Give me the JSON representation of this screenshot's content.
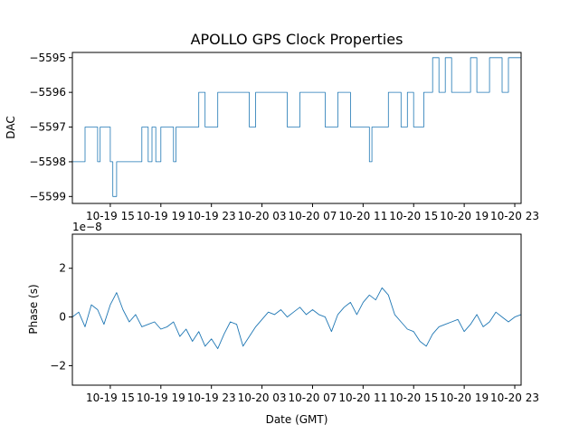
{
  "chart_data": [
    {
      "type": "line",
      "title": "APOLLO GPS Clock Properties",
      "xlabel": "",
      "ylabel": "DAC",
      "x_tick_labels": [
        "10-19 15",
        "10-19 19",
        "10-19 23",
        "10-20 03",
        "10-20 07",
        "10-20 11",
        "10-20 15",
        "10-20 19",
        "10-20 23"
      ],
      "x_tick_hours": [
        15,
        19,
        23,
        27,
        31,
        35,
        39,
        43,
        47
      ],
      "xlim_hours": [
        12.0,
        47.5
      ],
      "y_ticks": [
        -5599,
        -5598,
        -5597,
        -5596,
        -5595
      ],
      "y_tick_labels": [
        "−5599",
        "−5598",
        "−5597",
        "−5596",
        "−5595"
      ],
      "ylim": [
        -5599.2,
        -5594.85
      ],
      "color": "#1f77b4",
      "grid": false,
      "series": [
        {
          "x": [
            12.0,
            13.0,
            14.0,
            14.2,
            15.0,
            15.2,
            15.3,
            15.5,
            15.8,
            16.0,
            17.5,
            18.0,
            18.3,
            18.6,
            19.0,
            19.5,
            20.0,
            20.2,
            21.0,
            22.0,
            22.5,
            23.0,
            23.5,
            24.0,
            25.0,
            26.0,
            26.5,
            27.0,
            28.0,
            29.0,
            30.0,
            31.0,
            32.0,
            33.0,
            34.0,
            35.0,
            35.5,
            35.7,
            36.0,
            37.0,
            38.0,
            38.5,
            39.0,
            39.8,
            40.0,
            40.5,
            41.0,
            41.5,
            42.0,
            43.0,
            43.5,
            44.0,
            45.0,
            46.0,
            46.5,
            47.0,
            47.5
          ],
          "y": [
            -5598,
            -5597,
            -5598,
            -5597,
            -5598,
            -5599,
            -5599,
            -5598,
            -5598,
            -5598,
            -5597,
            -5598,
            -5597,
            -5598,
            -5597,
            -5597,
            -5598,
            -5597,
            -5597,
            -5596,
            -5597,
            -5597,
            -5596,
            -5596,
            -5596,
            -5597,
            -5596,
            -5596,
            -5596,
            -5597,
            -5596,
            -5596,
            -5597,
            -5596,
            -5597,
            -5597,
            -5598,
            -5597,
            -5597,
            -5596,
            -5597,
            -5596,
            -5597,
            -5596,
            -5596,
            -5595,
            -5596,
            -5595,
            -5596,
            -5596,
            -5595,
            -5596,
            -5595,
            -5596,
            -5595,
            -5595,
            -5596
          ]
        }
      ]
    },
    {
      "type": "line",
      "xlabel": "Date (GMT)",
      "ylabel": "Phase (s)",
      "offset_label": "1e−8",
      "x_tick_labels": [
        "10-19 15",
        "10-19 19",
        "10-19 23",
        "10-20 03",
        "10-20 07",
        "10-20 11",
        "10-20 15",
        "10-20 19",
        "10-20 23"
      ],
      "x_tick_hours": [
        15,
        19,
        23,
        27,
        31,
        35,
        39,
        43,
        47
      ],
      "xlim_hours": [
        12.0,
        47.5
      ],
      "y_ticks": [
        -2,
        0,
        2
      ],
      "y_tick_labels": [
        "−2",
        "0",
        "2"
      ],
      "ylim": [
        -2.8,
        3.4
      ],
      "color": "#1f77b4",
      "grid": false,
      "series": [
        {
          "x": [
            12.0,
            12.5,
            13.0,
            13.5,
            14.0,
            14.5,
            15.0,
            15.5,
            16.0,
            16.5,
            17.0,
            17.5,
            18.0,
            18.5,
            19.0,
            19.5,
            20.0,
            20.5,
            21.0,
            21.5,
            22.0,
            22.5,
            23.0,
            23.5,
            24.0,
            24.5,
            25.0,
            25.5,
            26.0,
            26.5,
            27.0,
            27.5,
            28.0,
            28.5,
            29.0,
            29.5,
            30.0,
            30.5,
            31.0,
            31.5,
            32.0,
            32.5,
            33.0,
            33.5,
            34.0,
            34.5,
            35.0,
            35.5,
            36.0,
            36.5,
            37.0,
            37.5,
            38.0,
            38.5,
            39.0,
            39.5,
            40.0,
            40.5,
            41.0,
            41.5,
            42.0,
            42.5,
            43.0,
            43.5,
            44.0,
            44.5,
            45.0,
            45.5,
            46.0,
            46.5,
            47.0,
            47.5
          ],
          "y": [
            0.0,
            0.2,
            -0.4,
            0.5,
            0.3,
            -0.3,
            0.5,
            1.0,
            0.3,
            -0.2,
            0.1,
            -0.4,
            -0.3,
            -0.2,
            -0.5,
            -0.4,
            -0.2,
            -0.8,
            -0.5,
            -1.0,
            -0.6,
            -1.2,
            -0.9,
            -1.3,
            -0.7,
            -0.2,
            -0.3,
            -1.2,
            -0.8,
            -0.4,
            -0.1,
            0.2,
            0.1,
            0.3,
            0.0,
            0.2,
            0.4,
            0.1,
            0.3,
            0.1,
            0.0,
            -0.6,
            0.1,
            0.4,
            0.6,
            0.1,
            0.6,
            0.9,
            0.7,
            1.2,
            0.9,
            0.1,
            -0.2,
            -0.5,
            -0.6,
            -1.0,
            -1.2,
            -0.7,
            -0.4,
            -0.3,
            -0.2,
            -0.1,
            -0.6,
            -0.3,
            0.1,
            -0.4,
            -0.2,
            0.2,
            0.0,
            -0.2,
            0.0,
            0.1
          ]
        }
      ]
    }
  ]
}
